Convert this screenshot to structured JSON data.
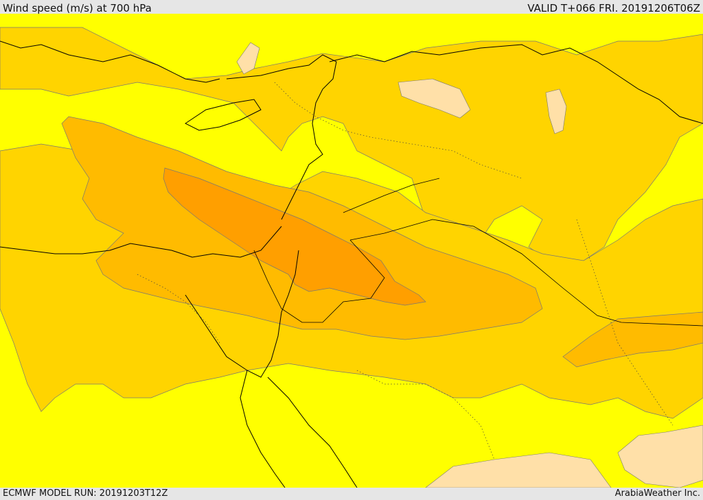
{
  "header": {
    "title": "Wind speed (m/s) at 700 hPa",
    "valid": "VALID T+066 FRI. 20191206T06Z"
  },
  "footer": {
    "model_run": "ECMWF MODEL RUN: 20191203T12Z",
    "credit": "ArabiaWeather Inc."
  },
  "map": {
    "region": "Eastern Mediterranean, Egypt, Levant, Arabian Peninsula",
    "variable": "700 hPa wind speed",
    "units": "m/s",
    "colors": {
      "background": "#ffff00",
      "band_1": "#ffd400",
      "band_2": "#ffbb00",
      "band_3": "#ff9f00",
      "calm": "#ffe0a8",
      "coast": "#000000",
      "contour": "#666666"
    }
  }
}
